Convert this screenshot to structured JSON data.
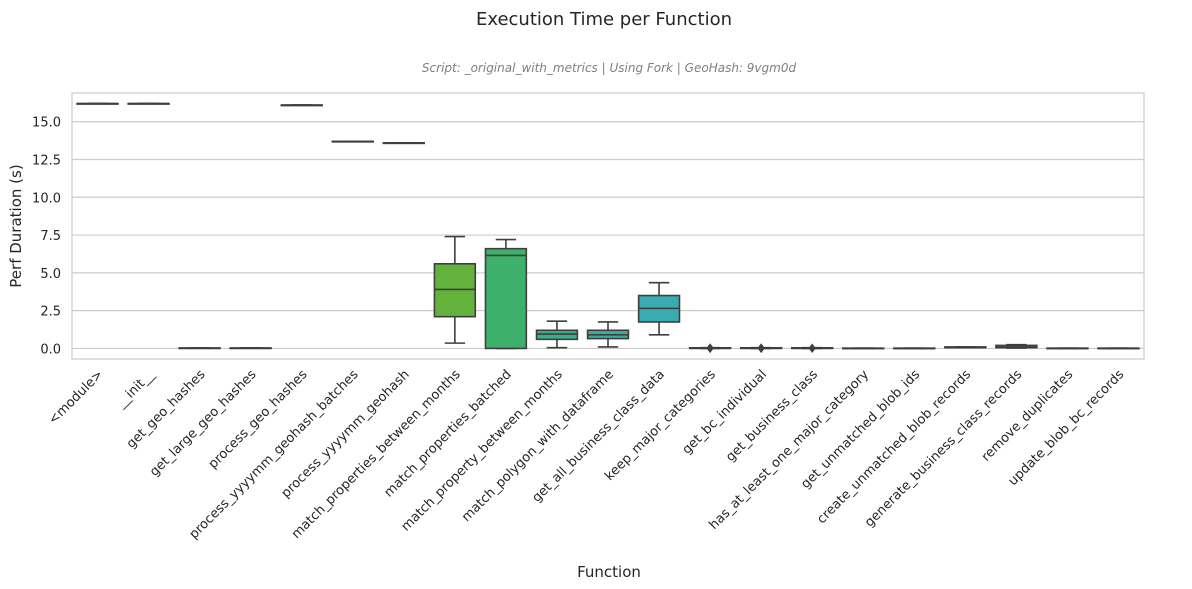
{
  "chart_data": {
    "type": "box",
    "title": "Execution Time per Function",
    "subtitle": "Script: _original_with_metrics | Using Fork | GeoHash: 9vgm0d",
    "xlabel": "Function",
    "ylabel": "Perf Duration (s)",
    "ylim": [
      -0.7,
      16.9
    ],
    "yticks": [
      0.0,
      2.5,
      5.0,
      7.5,
      10.0,
      12.5,
      15.0
    ],
    "ytick_labels": [
      "0.0",
      "2.5",
      "5.0",
      "7.5",
      "10.0",
      "12.5",
      "15.0"
    ],
    "grid": true,
    "categories": [
      "<module>",
      "__init__",
      "get_geo_hashes",
      "get_large_geo_hashes",
      "process_geo_hashes",
      "process_yyyymm_geohash_batches",
      "process_yyyymm_geohash",
      "match_properties_between_months",
      "match_properties_batched",
      "match_property_between_months",
      "match_polygon_with_dataframe",
      "get_all_business_class_data",
      "keep_major_categories",
      "get_bc_individual",
      "get_business_class",
      "has_at_least_one_major_category",
      "get_unmatched_blob_ids",
      "create_unmatched_blob_records",
      "generate_business_class_records",
      "remove_duplicates",
      "update_blob_bc_records"
    ],
    "boxes": [
      {
        "whisker_low": 16.2,
        "q1": 16.2,
        "median": 16.2,
        "q3": 16.2,
        "whisker_high": 16.2,
        "outliers": [],
        "color": "#d62728"
      },
      {
        "whisker_low": 16.2,
        "q1": 16.2,
        "median": 16.2,
        "q3": 16.2,
        "whisker_high": 16.2,
        "outliers": [],
        "color": "#d6422a"
      },
      {
        "whisker_low": 0.02,
        "q1": 0.02,
        "median": 0.02,
        "q3": 0.03,
        "whisker_high": 0.03,
        "outliers": [],
        "color": "#d6662c"
      },
      {
        "whisker_low": 0.02,
        "q1": 0.02,
        "median": 0.02,
        "q3": 0.03,
        "whisker_high": 0.03,
        "outliers": [],
        "color": "#d6892e"
      },
      {
        "whisker_low": 16.1,
        "q1": 16.1,
        "median": 16.1,
        "q3": 16.1,
        "whisker_high": 16.1,
        "outliers": [],
        "color": "#c9a630"
      },
      {
        "whisker_low": 13.7,
        "q1": 13.7,
        "median": 13.7,
        "q3": 13.7,
        "whisker_high": 13.7,
        "outliers": [],
        "color": "#a8b233"
      },
      {
        "whisker_low": 13.6,
        "q1": 13.6,
        "median": 13.6,
        "q3": 13.6,
        "whisker_high": 13.6,
        "outliers": [],
        "color": "#86b136"
      },
      {
        "whisker_low": 0.35,
        "q1": 2.1,
        "median": 3.9,
        "q3": 5.6,
        "whisker_high": 7.4,
        "outliers": [],
        "color": "#62b23c"
      },
      {
        "whisker_low": 0.0,
        "q1": 0.0,
        "median": 6.15,
        "q3": 6.6,
        "whisker_high": 7.2,
        "outliers": [],
        "color": "#3db06b"
      },
      {
        "whisker_low": 0.05,
        "q1": 0.6,
        "median": 0.95,
        "q3": 1.2,
        "whisker_high": 1.8,
        "outliers": [],
        "color": "#3aae8f"
      },
      {
        "whisker_low": 0.1,
        "q1": 0.65,
        "median": 0.9,
        "q3": 1.2,
        "whisker_high": 1.75,
        "outliers": [],
        "color": "#39ad9f"
      },
      {
        "whisker_low": 0.9,
        "q1": 1.75,
        "median": 2.65,
        "q3": 3.5,
        "whisker_high": 4.35,
        "outliers": [],
        "color": "#3aabb0"
      },
      {
        "whisker_low": 0.0,
        "q1": 0.0,
        "median": 0.02,
        "q3": 0.04,
        "whisker_high": 0.05,
        "outliers": [
          -0.05,
          0.08
        ],
        "color": "#3ba8c0"
      },
      {
        "whisker_low": 0.0,
        "q1": 0.0,
        "median": 0.02,
        "q3": 0.04,
        "whisker_high": 0.05,
        "outliers": [
          -0.05,
          0.08
        ],
        "color": "#3d9fd0"
      },
      {
        "whisker_low": 0.0,
        "q1": 0.0,
        "median": 0.02,
        "q3": 0.04,
        "whisker_high": 0.05,
        "outliers": [
          -0.04,
          0.06
        ],
        "color": "#4a8fd8"
      },
      {
        "whisker_low": 0.0,
        "q1": 0.0,
        "median": 0.01,
        "q3": 0.02,
        "whisker_high": 0.02,
        "outliers": [],
        "color": "#5f7fdc"
      },
      {
        "whisker_low": 0.0,
        "q1": 0.0,
        "median": 0.01,
        "q3": 0.02,
        "whisker_high": 0.02,
        "outliers": [],
        "color": "#7b74dc"
      },
      {
        "whisker_low": 0.05,
        "q1": 0.05,
        "median": 0.07,
        "q3": 0.1,
        "whisker_high": 0.1,
        "outliers": [],
        "color": "#9770d8"
      },
      {
        "whisker_low": 0.02,
        "q1": 0.05,
        "median": 0.1,
        "q3": 0.2,
        "whisker_high": 0.25,
        "outliers": [],
        "color": "#b16cd2"
      },
      {
        "whisker_low": 0.0,
        "q1": 0.0,
        "median": 0.01,
        "q3": 0.02,
        "whisker_high": 0.02,
        "outliers": [],
        "color": "#c86ac4"
      },
      {
        "whisker_low": 0.0,
        "q1": 0.0,
        "median": 0.01,
        "q3": 0.02,
        "whisker_high": 0.02,
        "outliers": [],
        "color": "#d86ab0"
      }
    ],
    "colors": {
      "grid": "#cccccc",
      "box_line": "#3f3f3f",
      "axes_frame": "#cccccc"
    }
  }
}
